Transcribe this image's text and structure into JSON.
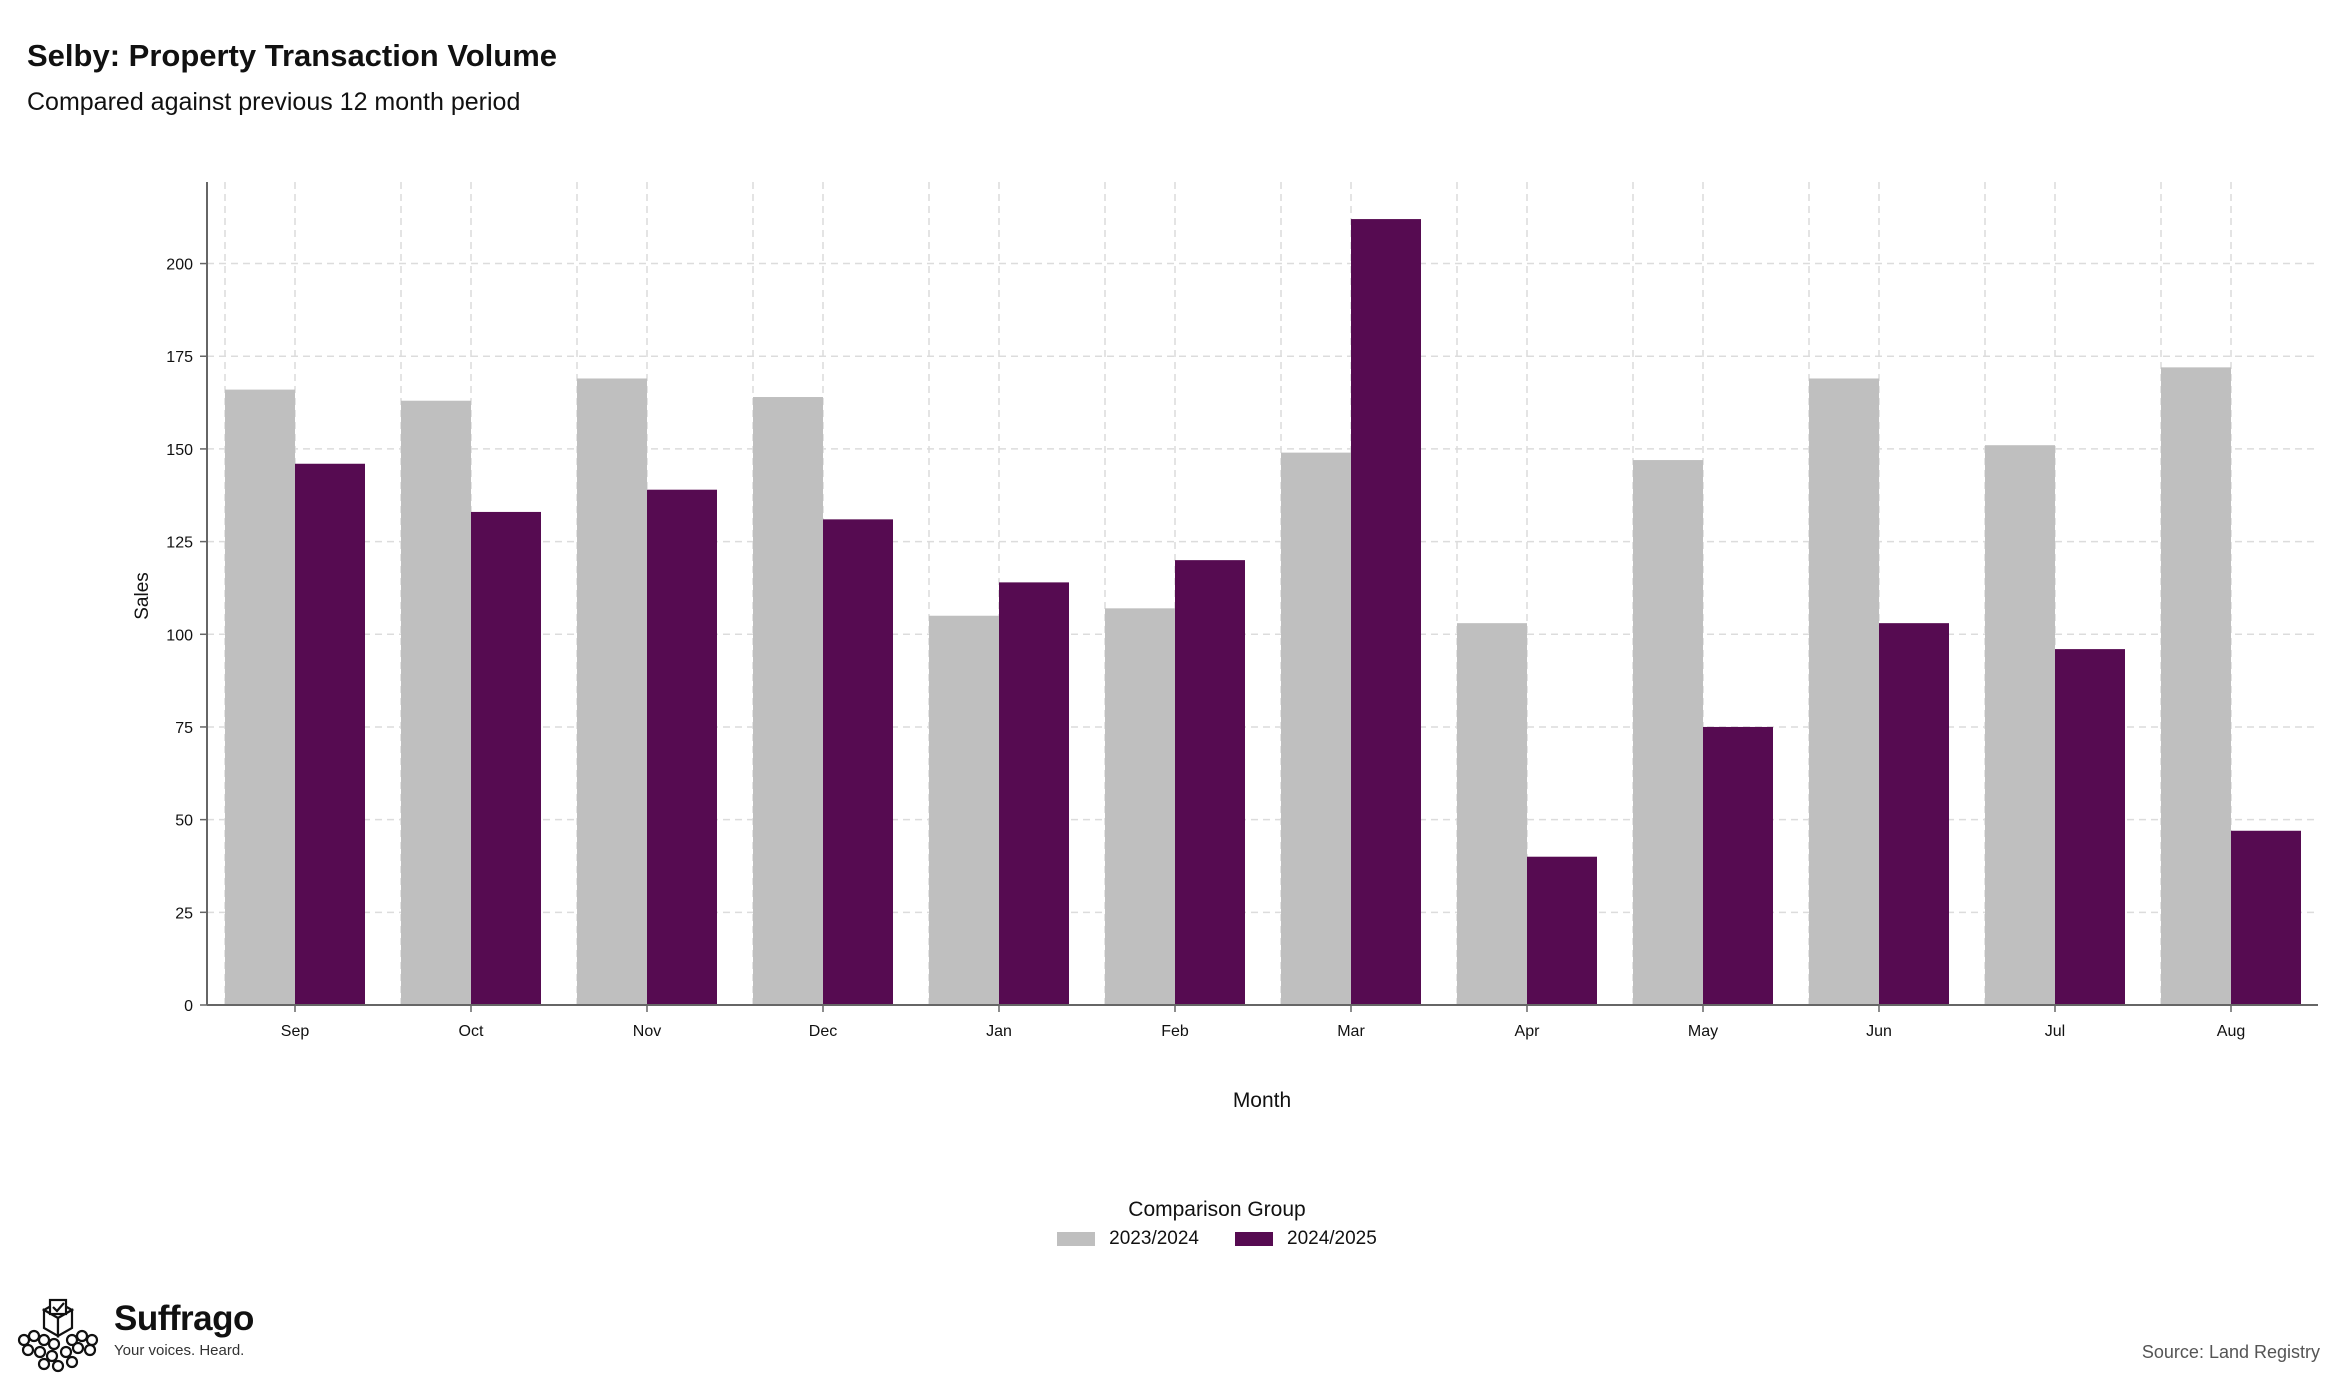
{
  "title": "Selby: Property Transaction Volume",
  "subtitle": "Compared against previous 12 month period",
  "legend": {
    "title": "Comparison Group",
    "items": [
      {
        "label": "2023/2024",
        "color": "#bfbfbf"
      },
      {
        "label": "2024/2025",
        "color": "#560b51"
      }
    ]
  },
  "brand": {
    "name": "Suffrago",
    "tagline": "Your voices. Heard."
  },
  "source": "Source: Land Registry",
  "chart_data": {
    "type": "bar",
    "title": "Selby: Property Transaction Volume",
    "subtitle": "Compared against previous 12 month period",
    "xlabel": "Month",
    "ylabel": "Sales",
    "ylim": [
      0,
      222
    ],
    "yticks": [
      0,
      25,
      50,
      75,
      100,
      125,
      150,
      175,
      200
    ],
    "grid": true,
    "legend_position": "bottom",
    "categories": [
      "Sep",
      "Oct",
      "Nov",
      "Dec",
      "Jan",
      "Feb",
      "Mar",
      "Apr",
      "May",
      "Jun",
      "Jul",
      "Aug"
    ],
    "series": [
      {
        "name": "2023/2024",
        "color": "#bfbfbf",
        "values": [
          166,
          163,
          169,
          164,
          105,
          107,
          149,
          103,
          147,
          169,
          151,
          172
        ]
      },
      {
        "name": "2024/2025",
        "color": "#560b51",
        "values": [
          146,
          133,
          139,
          131,
          114,
          120,
          212,
          40,
          75,
          103,
          96,
          47
        ]
      }
    ]
  }
}
